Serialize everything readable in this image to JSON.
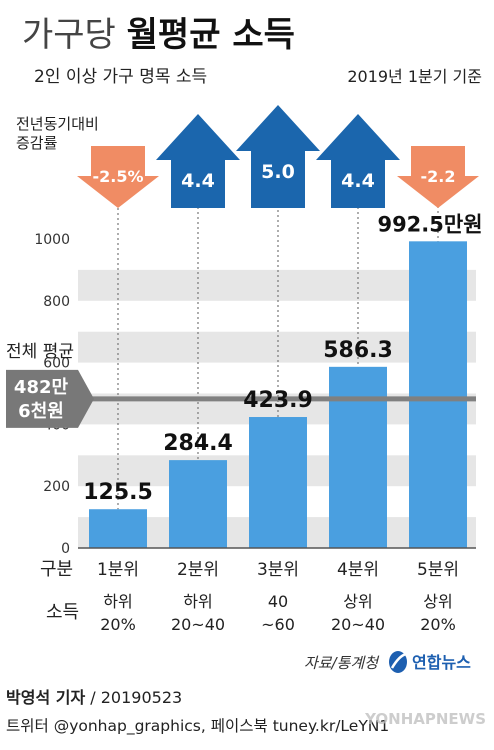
{
  "title": {
    "prefix": "가구당 ",
    "bold": "월평균 소득"
  },
  "subtitle": "2인 이상 가구 명목 소득",
  "period": "2019년 1분기 기준",
  "change_label_line1": "전년동기대비",
  "change_label_line2": "증감률",
  "average": {
    "label": "전체 평균",
    "value_line1": "482만",
    "value_line2": "6천원",
    "value": 482.6
  },
  "row_labels": {
    "group": "구분",
    "income": "소득"
  },
  "chart_data": {
    "type": "bar",
    "categories": [
      "1분위",
      "2분위",
      "3분위",
      "4분위",
      "5분위"
    ],
    "values": [
      125.5,
      284.4,
      423.9,
      586.3,
      992.5
    ],
    "value_labels": [
      "125.5",
      "284.4",
      "423.9",
      "586.3",
      "992.5만원"
    ],
    "income_groups": [
      [
        "하위",
        "20%"
      ],
      [
        "하위",
        "20~40"
      ],
      [
        "40",
        "~60"
      ],
      [
        "상위",
        "20~40"
      ],
      [
        "상위",
        "20%"
      ]
    ],
    "yoy_change": [
      -2.5,
      4.4,
      5.0,
      4.4,
      -2.2
    ],
    "yoy_labels": [
      "-2.5%",
      "4.4",
      "5.0",
      "4.4",
      "-2.2"
    ],
    "yticks": [
      0,
      200,
      400,
      600,
      800,
      1000
    ],
    "ylim": [
      0,
      1000
    ],
    "grid": true,
    "colors": {
      "bar": "#4a9fe0",
      "arrow_up": "#1b66ad",
      "arrow_down": "#f08c64",
      "average_line": "#808080",
      "average_box": "#787878",
      "band": "#e6e6e6"
    }
  },
  "source": "자료/통계청",
  "agency": "연합뉴스",
  "reporter": "박영석 기자",
  "date": "20190523",
  "social": "트위터 @yonhap_graphics, 페이스북 tuney.kr/LeYN1",
  "watermark": "YONHAPNEWS"
}
